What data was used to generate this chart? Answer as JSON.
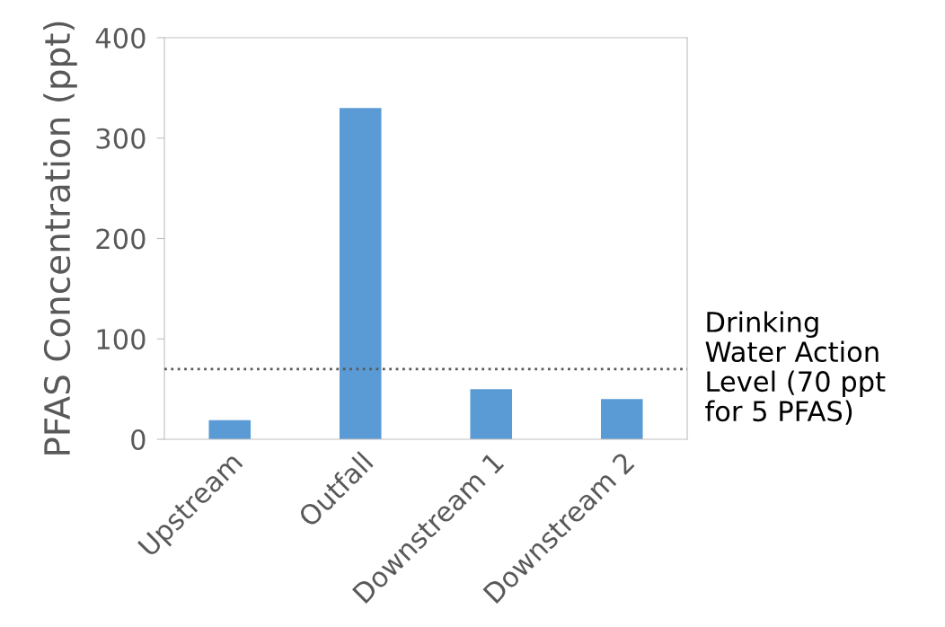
{
  "chart_data": {
    "type": "bar",
    "ylabel": "PFAS Concentration (ppt)",
    "categories": [
      "Upstream",
      "Outfall",
      "Downstream 1",
      "Downstream 2"
    ],
    "values": [
      19,
      330,
      50,
      40
    ],
    "color": "#5b9bd5",
    "ylim": [
      0,
      400
    ],
    "yticks": [
      0,
      100,
      200,
      300,
      400
    ],
    "grid": false,
    "ref_lines": [
      {
        "axis": "y",
        "value": 70,
        "label": "Drinking\nWater Action\nLevel (70 ppt\nfor 5 PFAS)",
        "color": "#595959",
        "line_style": "dotted"
      }
    ]
  }
}
